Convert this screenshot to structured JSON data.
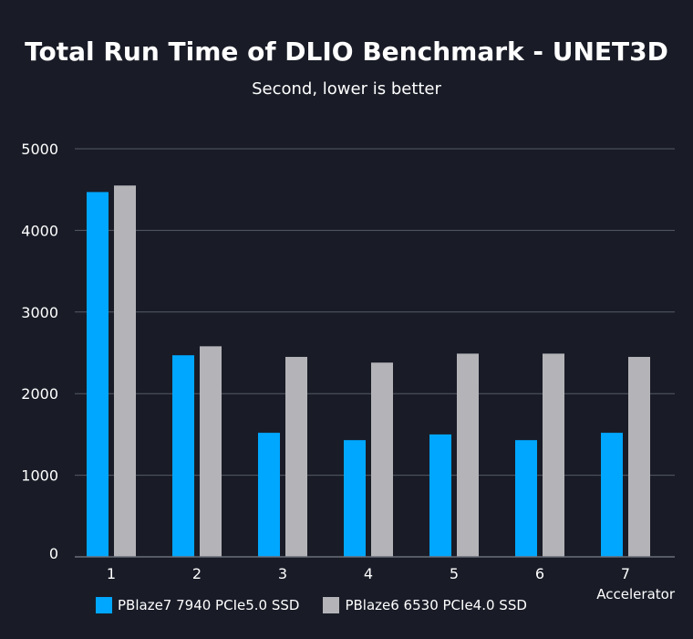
{
  "chart_data": {
    "type": "bar",
    "title": "Total Run Time of DLIO Benchmark - UNET3D",
    "subtitle": "Second, lower is better",
    "xlabel": "Accelerator",
    "ylabel": "",
    "categories": [
      "1",
      "2",
      "3",
      "4",
      "5",
      "6",
      "7"
    ],
    "yticks": [
      0,
      1000,
      2000,
      3000,
      4000,
      5000
    ],
    "ylim": [
      0,
      5000
    ],
    "grid": true,
    "legend_position": "bottom-left",
    "series": [
      {
        "name": "PBlaze7 7940 PCIe5.0 SSD",
        "color": "#00a7ff",
        "values": [
          4470,
          2470,
          1520,
          1430,
          1500,
          1430,
          1520
        ]
      },
      {
        "name": "PBlaze6 6530 PCIe4.0 SSD",
        "color": "#b4b4b8",
        "values": [
          4550,
          2580,
          2450,
          2380,
          2490,
          2490,
          2450
        ]
      }
    ]
  }
}
